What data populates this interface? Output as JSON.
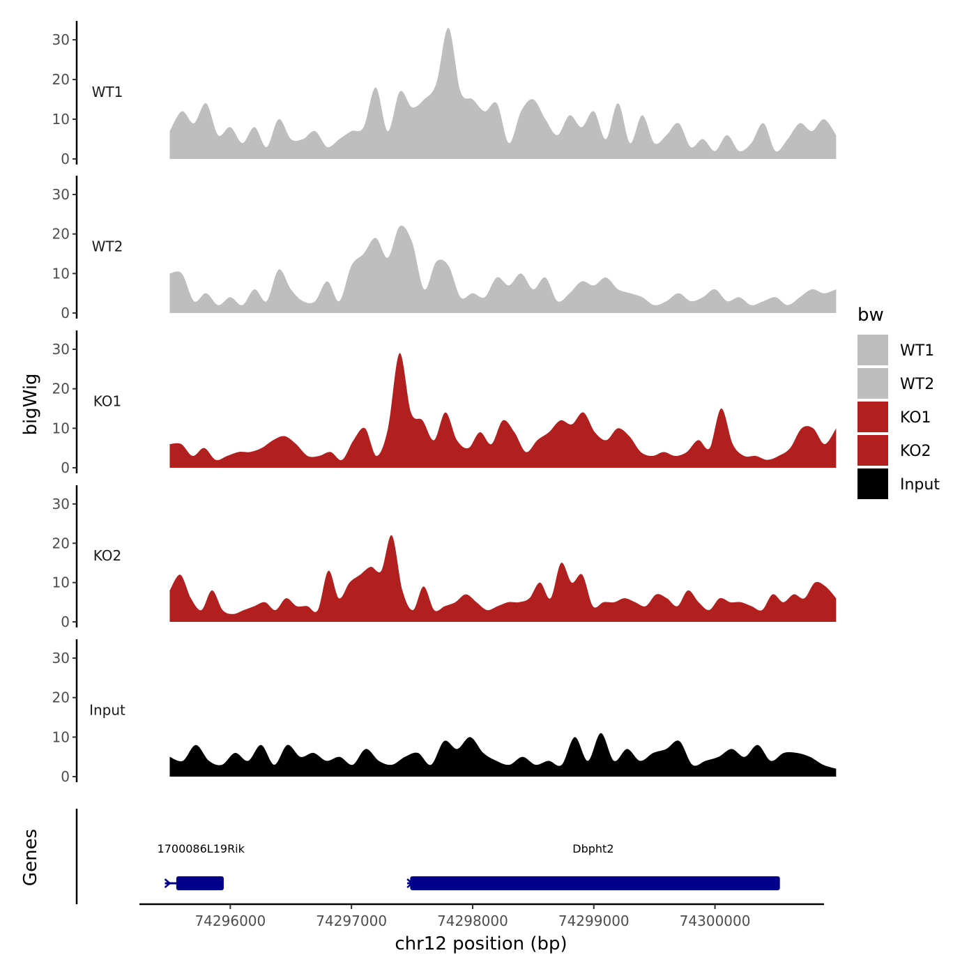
{
  "chart_data": {
    "type": "area",
    "ylabel": "bigWig",
    "xlabel": "chr12 position (bp)",
    "genes_label": "Genes",
    "ylim": [
      0,
      33
    ],
    "yticks": [
      0,
      10,
      20,
      30
    ],
    "xlim": [
      74295250,
      74300900
    ],
    "xticks": [
      74296000,
      74297000,
      74298000,
      74299000,
      74300000
    ],
    "xtick_labels": [
      "74296000",
      "74297000",
      "74298000",
      "74299000",
      "74300000"
    ],
    "legend": {
      "title": "bw",
      "position": "right",
      "entries": [
        {
          "label": "WT1",
          "color": "#bebebe"
        },
        {
          "label": "WT2",
          "color": "#bebebe"
        },
        {
          "label": "KO1",
          "color": "#b21f1f"
        },
        {
          "label": "KO2",
          "color": "#b21f1f"
        },
        {
          "label": "Input",
          "color": "#000000"
        }
      ]
    },
    "x_start": 74295500,
    "x_step": 100,
    "series": [
      {
        "name": "WT1",
        "color": "#bebebe",
        "values": [
          7,
          12,
          9,
          14,
          6,
          8,
          4,
          8,
          3,
          10,
          5,
          5,
          7,
          3,
          5,
          7,
          8,
          18,
          7,
          17,
          13,
          15,
          19,
          33,
          17,
          15,
          12,
          14,
          4,
          12,
          15,
          10,
          6,
          11,
          8,
          12,
          5,
          14,
          4,
          11,
          4,
          6,
          9,
          3,
          5,
          2,
          6,
          2,
          4,
          9,
          2,
          5,
          9,
          7,
          10,
          6
        ]
      },
      {
        "name": "WT2",
        "color": "#bebebe",
        "values": [
          10,
          10,
          3,
          5,
          2,
          4,
          2,
          6,
          3,
          11,
          6,
          3,
          3,
          8,
          3,
          12,
          15,
          19,
          14,
          22,
          18,
          6,
          13,
          12,
          4,
          5,
          4,
          9,
          7,
          10,
          6,
          9,
          3,
          5,
          8,
          7,
          9,
          6,
          5,
          4,
          2,
          3,
          5,
          3,
          4,
          6,
          3,
          4,
          2,
          3,
          4,
          2,
          4,
          6,
          5,
          6
        ]
      },
      {
        "name": "KO1",
        "color": "#b21f1f",
        "values": [
          6,
          6,
          3,
          5,
          2,
          3,
          4,
          4,
          5,
          7,
          8,
          6,
          3,
          3,
          4,
          2,
          7,
          10,
          3,
          10,
          29,
          14,
          12,
          7,
          14,
          7,
          5,
          9,
          6,
          12,
          9,
          4,
          7,
          9,
          12,
          11,
          14,
          9,
          7,
          10,
          8,
          4,
          3,
          4,
          3,
          4,
          7,
          5,
          15,
          6,
          3,
          3,
          2,
          3,
          5,
          10,
          10,
          6,
          10
        ]
      },
      {
        "name": "KO2",
        "color": "#b21f1f",
        "values": [
          8,
          12,
          6,
          3,
          8,
          3,
          2,
          3,
          4,
          5,
          3,
          6,
          4,
          4,
          3,
          13,
          6,
          10,
          12,
          14,
          13,
          22,
          8,
          3,
          9,
          3,
          4,
          5,
          7,
          5,
          3,
          4,
          5,
          5,
          6,
          10,
          6,
          15,
          10,
          12,
          4,
          5,
          5,
          6,
          5,
          4,
          7,
          6,
          4,
          8,
          5,
          3,
          6,
          5,
          5,
          4,
          3,
          7,
          5,
          7,
          6,
          10,
          9,
          6
        ]
      },
      {
        "name": "Input",
        "color": "#000000",
        "values": [
          5,
          4,
          8,
          4,
          3,
          6,
          4,
          8,
          3,
          8,
          5,
          6,
          4,
          5,
          3,
          7,
          4,
          3,
          5,
          6,
          3,
          9,
          7,
          10,
          6,
          4,
          3,
          5,
          3,
          4,
          3,
          10,
          4,
          11,
          4,
          7,
          4,
          6,
          7,
          9,
          3,
          4,
          5,
          7,
          5,
          8,
          4,
          6,
          6,
          5,
          3,
          2
        ]
      }
    ],
    "genes": [
      {
        "name": "1700086L19Rik",
        "start": 74295460,
        "end": 74295940,
        "cds_start": 74295560,
        "cds_end": 74295940,
        "strand": "+",
        "color": "#00008b"
      },
      {
        "name": "Dbpht2",
        "start": 74297460,
        "end": 74300530,
        "cds_start": 74297490,
        "cds_end": 74300530,
        "strand": "+",
        "color": "#00008b"
      }
    ]
  }
}
